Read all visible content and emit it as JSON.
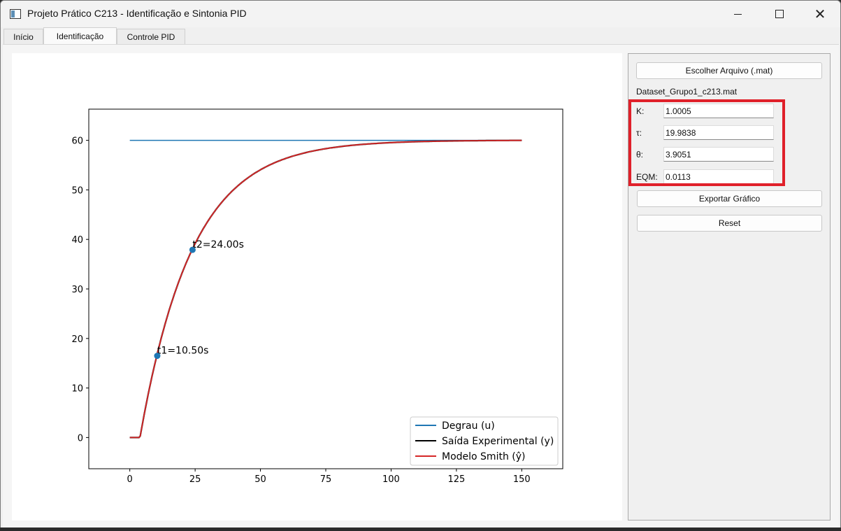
{
  "window": {
    "title": "Projeto Prático C213 - Identificação e Sintonia PID"
  },
  "tabs": [
    {
      "label": "Início"
    },
    {
      "label": "Identificação"
    },
    {
      "label": "Controle PID"
    }
  ],
  "side_panel": {
    "choose_file_label": "Escolher Arquivo (.mat)",
    "file_name": "Dataset_Grupo1_c213.mat",
    "params": {
      "k_label": "K:",
      "k_value": "1.0005",
      "tau_label": "τ:",
      "tau_value": "19.9838",
      "theta_label": "θ:",
      "theta_value": "3.9051",
      "eqm_label": "EQM:",
      "eqm_value": "0.0113"
    },
    "export_label": "Exportar Gráfico",
    "reset_label": "Reset",
    "highlight_color": "#e0202a"
  },
  "chart_data": {
    "type": "line",
    "xlim": [
      -15.7,
      165.7
    ],
    "ylim": [
      -6.3,
      66.3
    ],
    "xticks": [
      "0",
      "25",
      "50",
      "75",
      "100",
      "125",
      "150"
    ],
    "yticks": [
      "0",
      "10",
      "20",
      "30",
      "40",
      "50",
      "60"
    ],
    "legend_position": "lower-right",
    "series": [
      {
        "name": "Degrau (u)",
        "color": "#1f77b4",
        "kind": "step",
        "x": [
          0,
          150
        ],
        "y": [
          60,
          60
        ]
      },
      {
        "name": "Saída Experimental (y)",
        "color": "#000000",
        "kind": "fopdt",
        "K": 60.03,
        "tau": 19.98,
        "theta": 3.9,
        "x_end": 150
      },
      {
        "name": "Modelo Smith (ŷ)",
        "color": "#d62728",
        "kind": "fopdt",
        "K": 60.03,
        "tau": 19.98,
        "theta": 3.9,
        "x_end": 150
      }
    ],
    "points": [
      {
        "x": 10.5,
        "y": 16.5,
        "label": "t1=10.50s"
      },
      {
        "x": 24.0,
        "y": 37.9,
        "label": "t2=24.00s"
      }
    ]
  }
}
